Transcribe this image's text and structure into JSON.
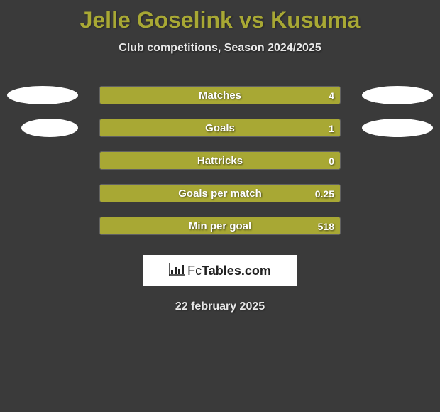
{
  "title": "Jelle Goselink vs Kusuma",
  "subtitle": "Club competitions, Season 2024/2025",
  "date": "22 february 2025",
  "logo": {
    "text_fc": "Fc",
    "text_tables": "Tables.com"
  },
  "style": {
    "background_color": "#3a3a3a",
    "title_color": "#a8a834",
    "title_fontsize": 32,
    "subtitle_color": "#e8e8e8",
    "subtitle_fontsize": 16,
    "bar_fill_color": "#a8a834",
    "bar_border_color": "rgba(255,255,255,0.2)",
    "label_color": "#ffffff",
    "value_color": "#ffffff",
    "ellipse_color": "#ffffff",
    "logo_bg": "#ffffff",
    "date_color": "#e8e8e8"
  },
  "stats": [
    {
      "label": "Matches",
      "value": "4",
      "fill_pct": 100,
      "ellipse_left": true,
      "ellipse_right": true,
      "ellipse_row_class": ""
    },
    {
      "label": "Goals",
      "value": "1",
      "fill_pct": 100,
      "ellipse_left": true,
      "ellipse_right": true,
      "ellipse_row_class": "row2"
    },
    {
      "label": "Hattricks",
      "value": "0",
      "fill_pct": 100,
      "ellipse_left": false,
      "ellipse_right": false,
      "ellipse_row_class": ""
    },
    {
      "label": "Goals per match",
      "value": "0.25",
      "fill_pct": 100,
      "ellipse_left": false,
      "ellipse_right": false,
      "ellipse_row_class": ""
    },
    {
      "label": "Min per goal",
      "value": "518",
      "fill_pct": 100,
      "ellipse_left": false,
      "ellipse_right": false,
      "ellipse_row_class": ""
    }
  ]
}
